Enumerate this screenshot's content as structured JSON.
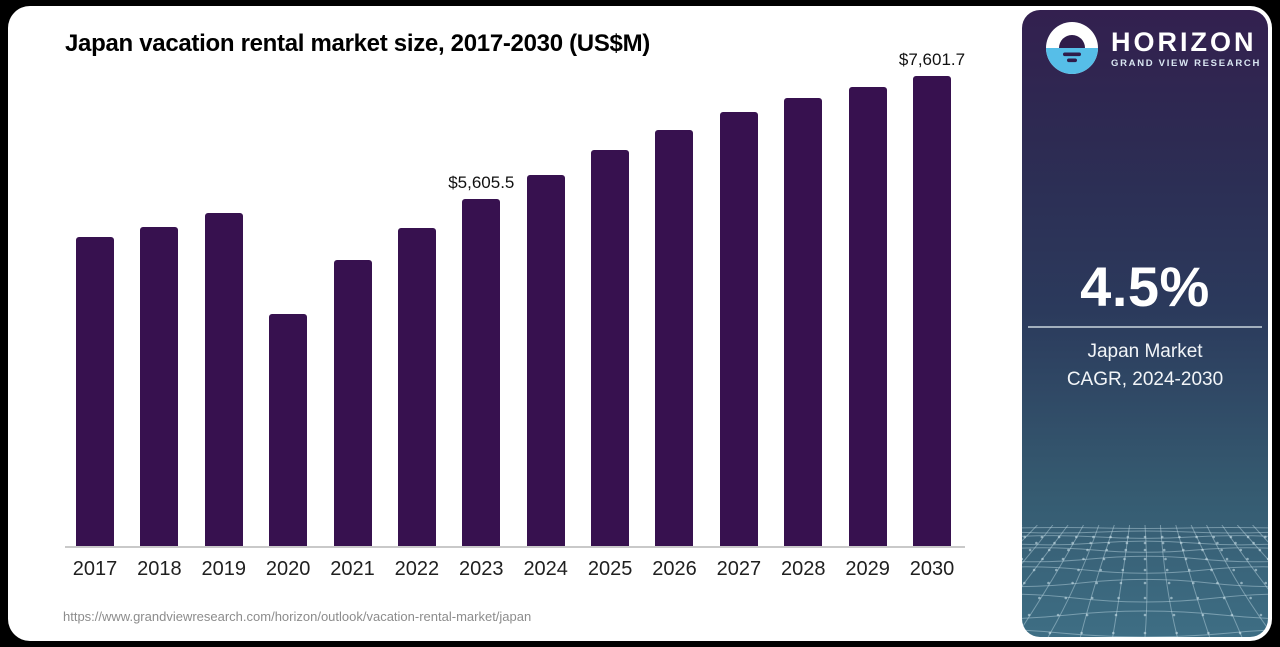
{
  "header": {
    "title": "Japan vacation rental market size, 2017-2030 (US$M)"
  },
  "footer": {
    "source_url": "https://www.grandviewresearch.com/horizon/outlook/vacation-rental-market/japan"
  },
  "chart_data": {
    "type": "bar",
    "title": "Japan vacation rental market size, 2017-2030 (US$M)",
    "xlabel": "",
    "ylabel": "US$M",
    "categories": [
      "2017",
      "2018",
      "2019",
      "2020",
      "2021",
      "2022",
      "2023",
      "2024",
      "2025",
      "2026",
      "2027",
      "2028",
      "2029",
      "2030"
    ],
    "values": [
      5000,
      5160,
      5385,
      3745,
      4625,
      5140,
      5605.5,
      6000,
      6405,
      6730,
      7020,
      7245,
      7425,
      7601.7
    ],
    "data_labels": {
      "2023": "$5,605.5",
      "2030": "$7,601.7"
    },
    "ylim": [
      0,
      7601.7
    ],
    "grid": false,
    "legend": false,
    "bar_color": "#37114F",
    "axis_line_color": "#C9C9C9"
  },
  "sidebar": {
    "logo_icon": "horizon-sunset-circle-icon",
    "brand_name": "HORIZON",
    "brand_subtitle": "GRAND VIEW RESEARCH",
    "stat_value": "4.5%",
    "stat_caption_line1": "Japan Market",
    "stat_caption_line2": "CAGR, 2024-2030",
    "colors": {
      "gradient_top": "#33204F",
      "gradient_middle": "#2B3A5C",
      "gradient_bottom": "#3E6E84",
      "logo_water": "#56BEE8",
      "logo_sun": "#2F1C4A"
    }
  }
}
